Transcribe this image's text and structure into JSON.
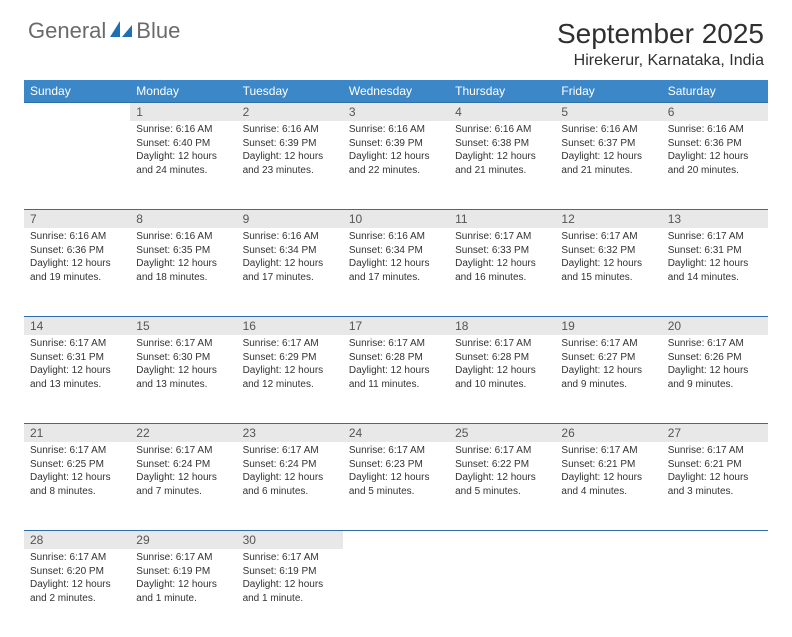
{
  "brand": {
    "name_a": "General",
    "name_b": "Blue"
  },
  "title": "September 2025",
  "location": "Hirekerur, Karnataka, India",
  "colors": {
    "header_bg": "#3b87c8",
    "header_text": "#ffffff",
    "daynum_bg": "#e8e8e8",
    "rule": "#2f6fa8",
    "logo_text": "#6a6a6a",
    "logo_accent": "#1f6fb2"
  },
  "day_headers": [
    "Sunday",
    "Monday",
    "Tuesday",
    "Wednesday",
    "Thursday",
    "Friday",
    "Saturday"
  ],
  "weeks": [
    [
      null,
      {
        "n": "1",
        "sr": "Sunrise: 6:16 AM",
        "ss": "Sunset: 6:40 PM",
        "dl": "Daylight: 12 hours and 24 minutes."
      },
      {
        "n": "2",
        "sr": "Sunrise: 6:16 AM",
        "ss": "Sunset: 6:39 PM",
        "dl": "Daylight: 12 hours and 23 minutes."
      },
      {
        "n": "3",
        "sr": "Sunrise: 6:16 AM",
        "ss": "Sunset: 6:39 PM",
        "dl": "Daylight: 12 hours and 22 minutes."
      },
      {
        "n": "4",
        "sr": "Sunrise: 6:16 AM",
        "ss": "Sunset: 6:38 PM",
        "dl": "Daylight: 12 hours and 21 minutes."
      },
      {
        "n": "5",
        "sr": "Sunrise: 6:16 AM",
        "ss": "Sunset: 6:37 PM",
        "dl": "Daylight: 12 hours and 21 minutes."
      },
      {
        "n": "6",
        "sr": "Sunrise: 6:16 AM",
        "ss": "Sunset: 6:36 PM",
        "dl": "Daylight: 12 hours and 20 minutes."
      }
    ],
    [
      {
        "n": "7",
        "sr": "Sunrise: 6:16 AM",
        "ss": "Sunset: 6:36 PM",
        "dl": "Daylight: 12 hours and 19 minutes."
      },
      {
        "n": "8",
        "sr": "Sunrise: 6:16 AM",
        "ss": "Sunset: 6:35 PM",
        "dl": "Daylight: 12 hours and 18 minutes."
      },
      {
        "n": "9",
        "sr": "Sunrise: 6:16 AM",
        "ss": "Sunset: 6:34 PM",
        "dl": "Daylight: 12 hours and 17 minutes."
      },
      {
        "n": "10",
        "sr": "Sunrise: 6:16 AM",
        "ss": "Sunset: 6:34 PM",
        "dl": "Daylight: 12 hours and 17 minutes."
      },
      {
        "n": "11",
        "sr": "Sunrise: 6:17 AM",
        "ss": "Sunset: 6:33 PM",
        "dl": "Daylight: 12 hours and 16 minutes."
      },
      {
        "n": "12",
        "sr": "Sunrise: 6:17 AM",
        "ss": "Sunset: 6:32 PM",
        "dl": "Daylight: 12 hours and 15 minutes."
      },
      {
        "n": "13",
        "sr": "Sunrise: 6:17 AM",
        "ss": "Sunset: 6:31 PM",
        "dl": "Daylight: 12 hours and 14 minutes."
      }
    ],
    [
      {
        "n": "14",
        "sr": "Sunrise: 6:17 AM",
        "ss": "Sunset: 6:31 PM",
        "dl": "Daylight: 12 hours and 13 minutes."
      },
      {
        "n": "15",
        "sr": "Sunrise: 6:17 AM",
        "ss": "Sunset: 6:30 PM",
        "dl": "Daylight: 12 hours and 13 minutes."
      },
      {
        "n": "16",
        "sr": "Sunrise: 6:17 AM",
        "ss": "Sunset: 6:29 PM",
        "dl": "Daylight: 12 hours and 12 minutes."
      },
      {
        "n": "17",
        "sr": "Sunrise: 6:17 AM",
        "ss": "Sunset: 6:28 PM",
        "dl": "Daylight: 12 hours and 11 minutes."
      },
      {
        "n": "18",
        "sr": "Sunrise: 6:17 AM",
        "ss": "Sunset: 6:28 PM",
        "dl": "Daylight: 12 hours and 10 minutes."
      },
      {
        "n": "19",
        "sr": "Sunrise: 6:17 AM",
        "ss": "Sunset: 6:27 PM",
        "dl": "Daylight: 12 hours and 9 minutes."
      },
      {
        "n": "20",
        "sr": "Sunrise: 6:17 AM",
        "ss": "Sunset: 6:26 PM",
        "dl": "Daylight: 12 hours and 9 minutes."
      }
    ],
    [
      {
        "n": "21",
        "sr": "Sunrise: 6:17 AM",
        "ss": "Sunset: 6:25 PM",
        "dl": "Daylight: 12 hours and 8 minutes."
      },
      {
        "n": "22",
        "sr": "Sunrise: 6:17 AM",
        "ss": "Sunset: 6:24 PM",
        "dl": "Daylight: 12 hours and 7 minutes."
      },
      {
        "n": "23",
        "sr": "Sunrise: 6:17 AM",
        "ss": "Sunset: 6:24 PM",
        "dl": "Daylight: 12 hours and 6 minutes."
      },
      {
        "n": "24",
        "sr": "Sunrise: 6:17 AM",
        "ss": "Sunset: 6:23 PM",
        "dl": "Daylight: 12 hours and 5 minutes."
      },
      {
        "n": "25",
        "sr": "Sunrise: 6:17 AM",
        "ss": "Sunset: 6:22 PM",
        "dl": "Daylight: 12 hours and 5 minutes."
      },
      {
        "n": "26",
        "sr": "Sunrise: 6:17 AM",
        "ss": "Sunset: 6:21 PM",
        "dl": "Daylight: 12 hours and 4 minutes."
      },
      {
        "n": "27",
        "sr": "Sunrise: 6:17 AM",
        "ss": "Sunset: 6:21 PM",
        "dl": "Daylight: 12 hours and 3 minutes."
      }
    ],
    [
      {
        "n": "28",
        "sr": "Sunrise: 6:17 AM",
        "ss": "Sunset: 6:20 PM",
        "dl": "Daylight: 12 hours and 2 minutes."
      },
      {
        "n": "29",
        "sr": "Sunrise: 6:17 AM",
        "ss": "Sunset: 6:19 PM",
        "dl": "Daylight: 12 hours and 1 minute."
      },
      {
        "n": "30",
        "sr": "Sunrise: 6:17 AM",
        "ss": "Sunset: 6:19 PM",
        "dl": "Daylight: 12 hours and 1 minute."
      },
      null,
      null,
      null,
      null
    ]
  ]
}
